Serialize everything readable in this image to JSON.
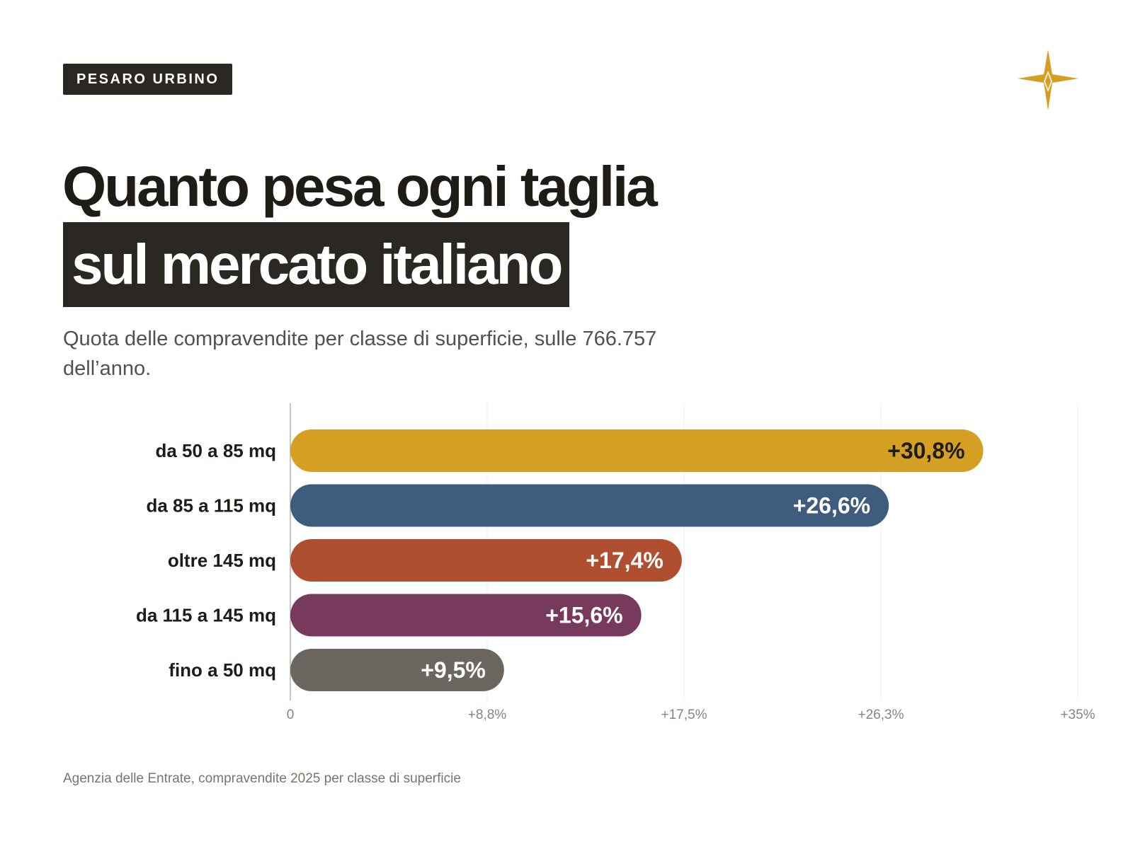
{
  "header": {
    "region_tag": "PESARO URBINO",
    "title_line1": "Quanto pesa ogni taglia",
    "title_line2": "sul mercato italiano",
    "subtitle": "Quota delle compravendite per classe di superficie, sulle 766.757 dell’anno."
  },
  "logo": {
    "icon": "star-compass-icon",
    "color": "#d49f22"
  },
  "footer": {
    "source": "Agenzia delle Entrate, compravendite 2025 per classe di superficie"
  },
  "chart_data": {
    "type": "bar",
    "orientation": "horizontal",
    "categories": [
      "da 50 a 85 mq",
      "da 85 a 115 mq",
      "oltre 145 mq",
      "da 115 a 145 mq",
      "fino a 50 mq"
    ],
    "values": [
      30.8,
      26.6,
      17.4,
      15.6,
      9.5
    ],
    "value_labels": [
      "+30,8%",
      "+26,6%",
      "+17,4%",
      "+15,6%",
      "+9,5%"
    ],
    "colors": [
      "#d49f22",
      "#3e5c7e",
      "#b04f2f",
      "#783a5c",
      "#6b6760"
    ],
    "xlim": [
      0,
      35
    ],
    "x_ticks": [
      0,
      8.75,
      17.5,
      26.25,
      35
    ],
    "x_tick_labels": [
      "0",
      "+8,8%",
      "+17,5%",
      "+26,3%",
      "+35%"
    ],
    "grid": true
  }
}
